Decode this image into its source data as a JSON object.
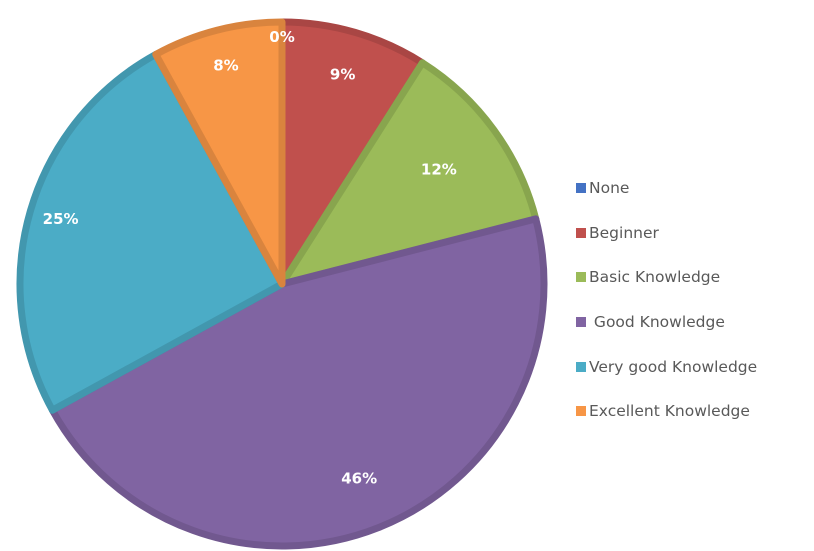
{
  "chart_data": {
    "type": "pie",
    "categories": [
      "None",
      "Beginner",
      "Basic Knowledge",
      " Good Knowledge",
      "Very good Knowledge",
      "Excellent Knowledge"
    ],
    "values": [
      0,
      9,
      12,
      46,
      25,
      8
    ],
    "data_labels": [
      "0%",
      "9%",
      "12%",
      "46%",
      "25%",
      "8%"
    ],
    "colors": [
      "#4472C4",
      "#C0504D",
      "#9BBB59",
      "#8064A2",
      "#4BACC6",
      "#F79646"
    ],
    "start_angle_deg": 0,
    "direction": "clockwise",
    "legend_position": "right"
  }
}
